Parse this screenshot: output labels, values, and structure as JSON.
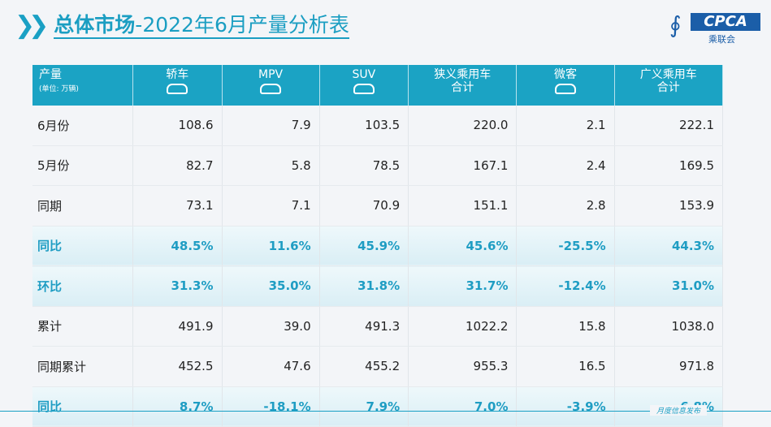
{
  "title": {
    "prefix": "总体市场",
    "suffix": "-2022年6月产量分析表"
  },
  "logo": {
    "text": "CPCA",
    "sub": "乘联会"
  },
  "table": {
    "header": {
      "label": "产量",
      "unit": "(单位: 万辆)"
    },
    "columns": [
      {
        "label": "轿车",
        "icon": "sedan-icon"
      },
      {
        "label": "MPV",
        "icon": "mpv-icon"
      },
      {
        "label": "SUV",
        "icon": "suv-icon"
      },
      {
        "label": "狭义乘用车合计",
        "icon": ""
      },
      {
        "label": "微客",
        "icon": "minivan-icon"
      },
      {
        "label": "广义乘用车合计",
        "icon": ""
      }
    ],
    "rows": [
      {
        "label": "6月份",
        "values": [
          "108.6",
          "7.9",
          "103.5",
          "220.0",
          "2.1",
          "222.1"
        ],
        "highlight": false
      },
      {
        "label": "5月份",
        "values": [
          "82.7",
          "5.8",
          "78.5",
          "167.1",
          "2.4",
          "169.5"
        ],
        "highlight": false
      },
      {
        "label": "同期",
        "values": [
          "73.1",
          "7.1",
          "70.9",
          "151.1",
          "2.8",
          "153.9"
        ],
        "highlight": false
      },
      {
        "label": "同比",
        "values": [
          "48.5%",
          "11.6%",
          "45.9%",
          "45.6%",
          "-25.5%",
          "44.3%"
        ],
        "highlight": true
      },
      {
        "label": "环比",
        "values": [
          "31.3%",
          "35.0%",
          "31.8%",
          "31.7%",
          "-12.4%",
          "31.0%"
        ],
        "highlight": true
      },
      {
        "label": "累计",
        "values": [
          "491.9",
          "39.0",
          "491.3",
          "1022.2",
          "15.8",
          "1038.0"
        ],
        "highlight": false
      },
      {
        "label": "同期累计",
        "values": [
          "452.5",
          "47.6",
          "455.2",
          "955.3",
          "16.5",
          "971.8"
        ],
        "highlight": false
      },
      {
        "label": "同比",
        "values": [
          "8.7%",
          "-18.1%",
          "7.9%",
          "7.0%",
          "-3.9%",
          "6.8%"
        ],
        "highlight": true
      }
    ]
  },
  "footer": "月度信息发布",
  "colors": {
    "accent": "#1ba3c4",
    "highlight_text": "#1f9dc3"
  }
}
